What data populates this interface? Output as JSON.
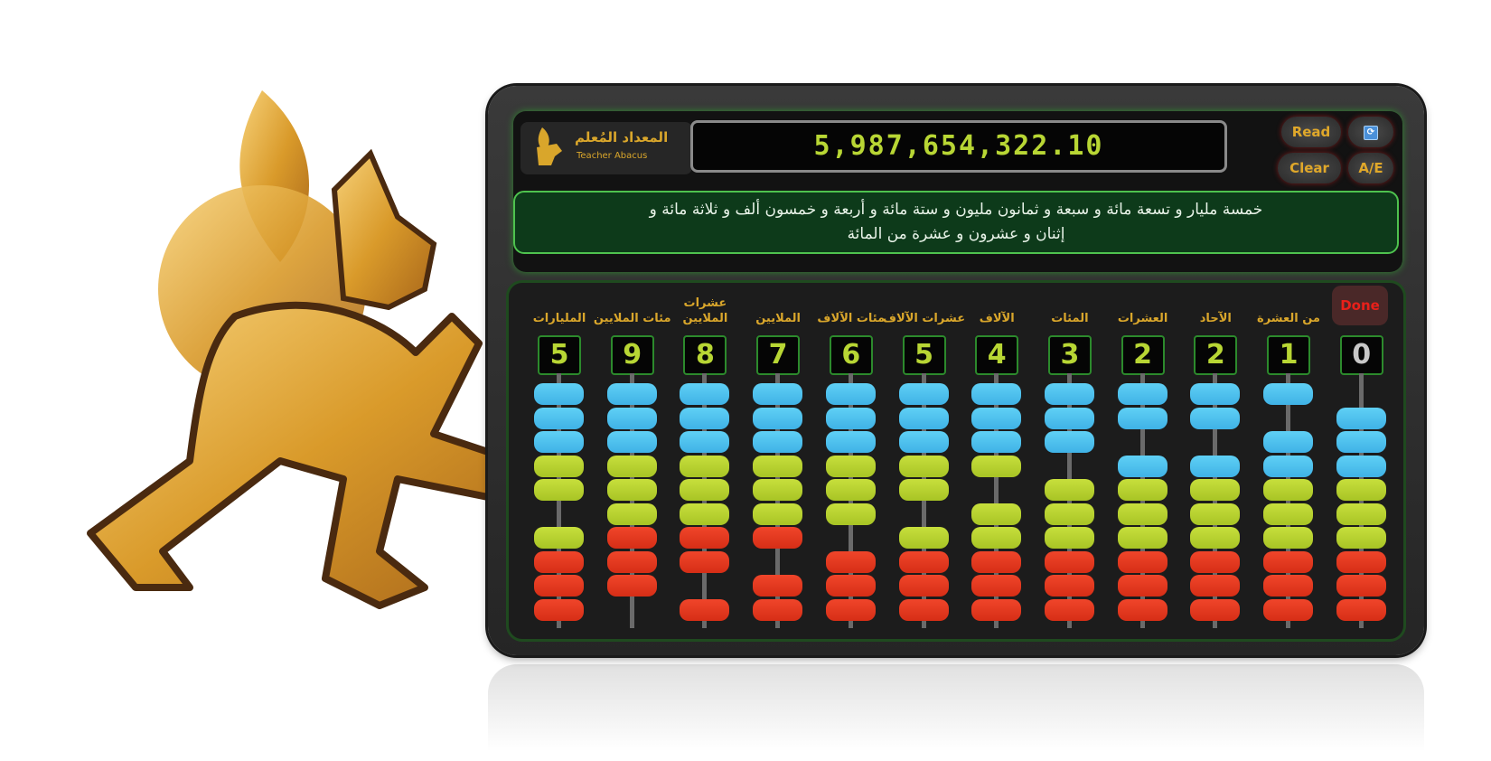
{
  "brand": {
    "title_ar": "المعداد المُعلم",
    "title_en": "Teacher Abacus"
  },
  "display": {
    "value": "5,987,654,322.10"
  },
  "buttons": {
    "read": "Read",
    "clear": "Clear",
    "lang": "A/E",
    "refresh_icon": "refresh-icon",
    "done": "Done"
  },
  "words": {
    "line1": "خمسة مليار و تسعة مائة و سبعة و ثمانون مليون و ستة مائة و أربعة و خمسون ألف و ثلاثة مائة و",
    "line2": "إثنان و عشرون و عشرة من المائة"
  },
  "colors": {
    "upper_beads": "#4fc3f0",
    "middle_beads": "#b8d634",
    "lower_beads": "#e63a20",
    "digits": "#b8d634",
    "labels": "#d9a62b",
    "accent_green": "#4ec24e"
  },
  "columns": [
    {
      "label": "المليارات",
      "digit": 5
    },
    {
      "label": "مئات الملايين",
      "digit": 9
    },
    {
      "label": "عشرات الملايين",
      "digit": 8
    },
    {
      "label": "الملايين",
      "digit": 7
    },
    {
      "label": "مئات الآلاف",
      "digit": 6
    },
    {
      "label": "عشرات الآلاف",
      "digit": 5
    },
    {
      "label": "الآلاف",
      "digit": 4
    },
    {
      "label": "المئات",
      "digit": 3
    },
    {
      "label": "العشرات",
      "digit": 2
    },
    {
      "label": "الآحاد",
      "digit": 2
    },
    {
      "label": "من العشرة",
      "digit": 1
    },
    {
      "label": "",
      "digit": 0
    }
  ]
}
